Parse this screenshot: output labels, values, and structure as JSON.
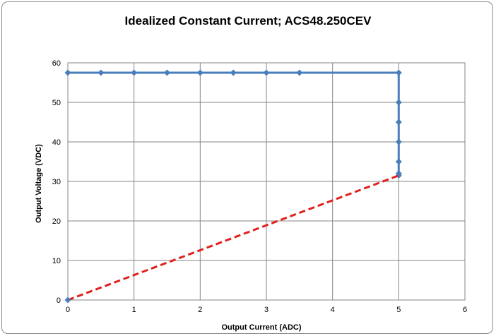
{
  "chart_data": {
    "type": "scatter",
    "title": "Idealized Constant Current; ACS48.250CEV",
    "xlabel": "Output Current (ADC)",
    "ylabel": "Output Voltage (VDC)",
    "xlim": [
      0,
      6
    ],
    "ylim": [
      0,
      60
    ],
    "x_ticks": [
      0,
      1,
      2,
      3,
      4,
      5,
      6
    ],
    "y_ticks": [
      0,
      10,
      20,
      30,
      40,
      50,
      60
    ],
    "grid": true,
    "series": [
      {
        "style": "solid line with diamond markers",
        "color": "#4a7ebb",
        "points": [
          [
            0,
            57.5
          ],
          [
            0.5,
            57.5
          ],
          [
            1,
            57.5
          ],
          [
            1.5,
            57.5
          ],
          [
            2,
            57.5
          ],
          [
            2.5,
            57.5
          ],
          [
            3,
            57.5
          ],
          [
            3.5,
            57.5
          ],
          [
            5,
            57.5
          ],
          [
            5,
            50
          ],
          [
            5,
            45
          ],
          [
            5,
            40
          ],
          [
            5,
            35
          ],
          [
            5,
            32
          ],
          [
            5,
            31.5
          ]
        ]
      },
      {
        "style": "dashed line",
        "color": "#e0201b",
        "points": [
          [
            0,
            0
          ],
          [
            5,
            31.5
          ]
        ]
      }
    ],
    "extra_markers": [
      {
        "color": "#4a7ebb",
        "points": [
          [
            0,
            0
          ]
        ]
      }
    ]
  }
}
